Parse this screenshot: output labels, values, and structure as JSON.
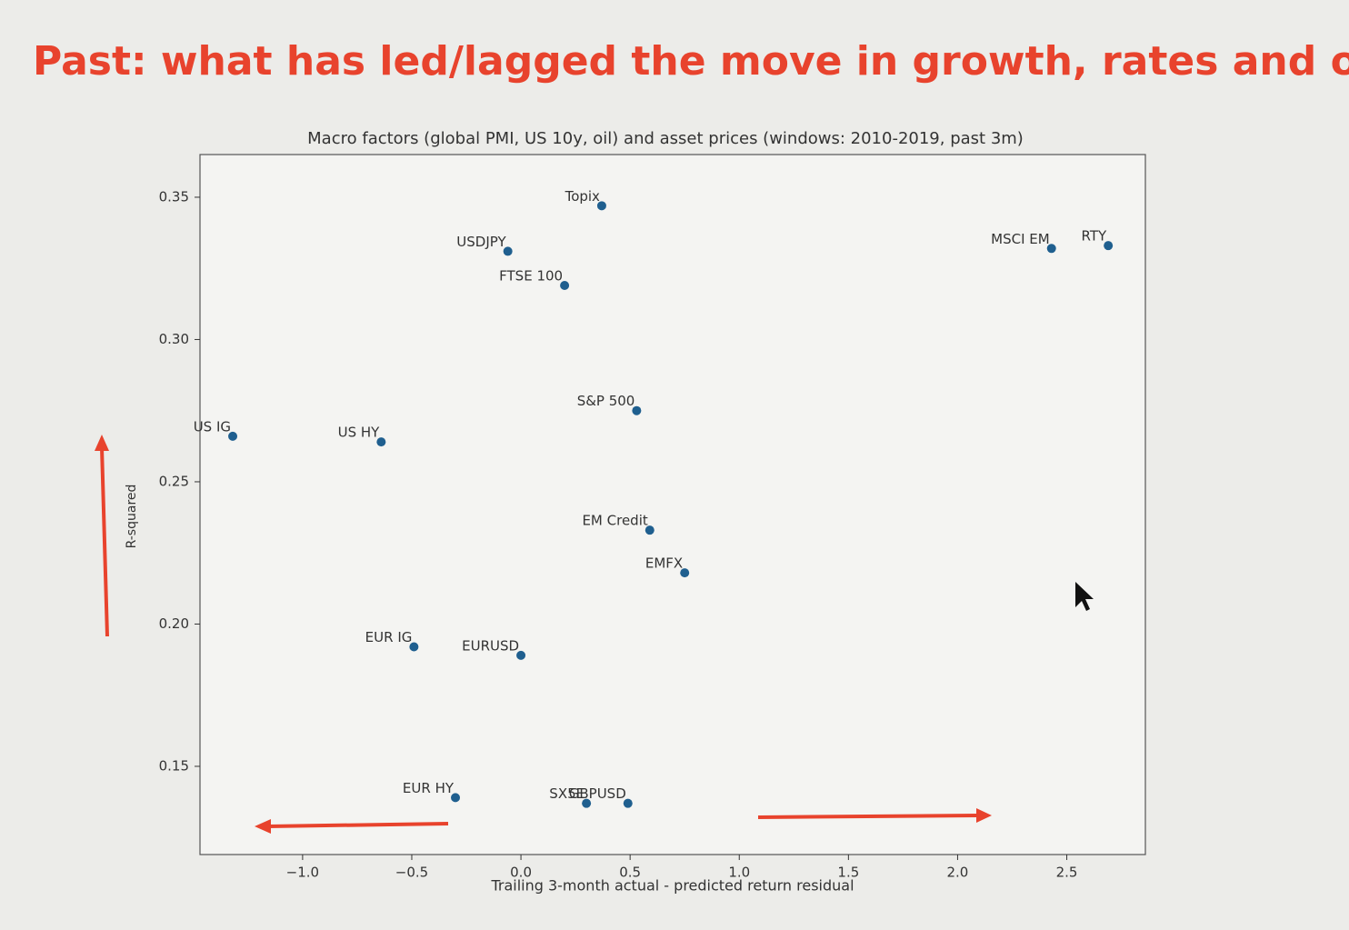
{
  "header": {
    "title": "Past: what has led/lagged the move in growth, rates and oil?"
  },
  "chart_data": {
    "type": "scatter",
    "title": "Macro factors (global PMI, US 10y, oil) and asset prices (windows: 2010-2019, past 3m)",
    "x_label": "Trailing 3-month actual - predicted return residual",
    "y_label": "R-squared",
    "color": "#1f5f8f",
    "point_labels": [
      "Topix",
      "USDJPY",
      "FTSE 100",
      "MSCI EM",
      "RTY",
      "S&P 500",
      "US IG",
      "US HY",
      "EM Credit",
      "EMFX",
      "EUR IG",
      "EURUSD",
      "EUR HY",
      "SX5E",
      "GBPUSD"
    ],
    "x": [
      0.37,
      -0.06,
      0.2,
      2.43,
      2.69,
      0.53,
      -1.32,
      -0.64,
      0.59,
      0.75,
      -0.49,
      0.0,
      -0.3,
      0.3,
      0.49
    ],
    "values": [
      0.347,
      0.331,
      0.319,
      0.332,
      0.333,
      0.275,
      0.266,
      0.264,
      0.233,
      0.218,
      0.192,
      0.189,
      0.139,
      0.137,
      0.137
    ],
    "xlim": [
      -1.47,
      2.86
    ],
    "ylim": [
      0.119,
      0.365
    ],
    "xticks": [
      {
        "value": -1,
        "label": "−1.0"
      },
      {
        "value": -0.5,
        "label": "−0.5"
      },
      {
        "value": 0,
        "label": "0.0"
      },
      0.5,
      {
        "value": 1,
        "label": "1.0"
      },
      1.5,
      {
        "value": 2,
        "label": "2.0"
      },
      2.5
    ],
    "yticks": [
      {
        "value": 0.15,
        "label": "0.15"
      },
      {
        "value": 0.2,
        "label": "0.20"
      },
      0.25,
      {
        "value": 0.3,
        "label": "0.30"
      },
      0.35
    ],
    "grid": false
  }
}
